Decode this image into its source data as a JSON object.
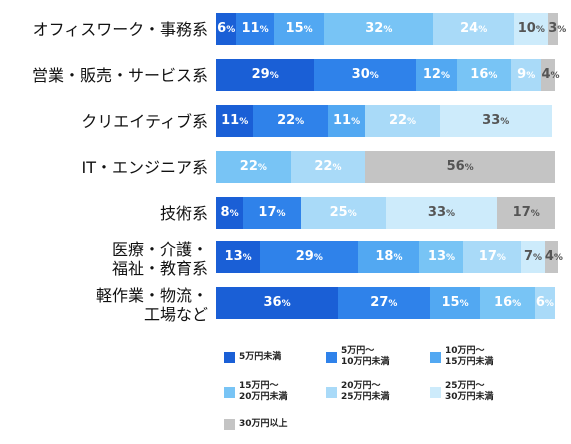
{
  "chart_data": {
    "type": "bar",
    "orientation": "horizontal",
    "stacked": true,
    "normalized": true,
    "unit": "%",
    "categories": [
      [
        "オフィスワーク・事務系"
      ],
      [
        "営業・販売・サービス系"
      ],
      [
        "クリエイティブ系"
      ],
      [
        "IT・エンジニア系"
      ],
      [
        "技術系"
      ],
      [
        "医療・介護・",
        "福祉・教育系"
      ],
      [
        "軽作業・物流・",
        "工場など"
      ]
    ],
    "series": [
      {
        "name": "5万円未満",
        "color": "#1a5fd6",
        "values": [
          6,
          29,
          11,
          0,
          8,
          13,
          36
        ]
      },
      {
        "name": "5万円〜\n10万円未満",
        "color": "#2f82ea",
        "values": [
          11,
          30,
          22,
          0,
          17,
          29,
          27
        ]
      },
      {
        "name": "10万円〜\n15万円未満",
        "color": "#52a8f2",
        "values": [
          15,
          12,
          11,
          0,
          0,
          18,
          15
        ]
      },
      {
        "name": "15万円〜\n20万円未満",
        "color": "#78c4f5",
        "values": [
          32,
          16,
          0,
          22,
          0,
          13,
          16
        ]
      },
      {
        "name": "20万円〜\n25万円未満",
        "color": "#a9daf8",
        "values": [
          24,
          9,
          22,
          22,
          25,
          17,
          6
        ]
      },
      {
        "name": "25万円〜\n30万円未満",
        "color": "#cdebfb",
        "values": [
          10,
          0,
          33,
          0,
          33,
          7,
          0
        ]
      },
      {
        "name": "30万円以上",
        "color": "#c4c4c4",
        "values": [
          3,
          4,
          0,
          56,
          17,
          4,
          0
        ]
      }
    ],
    "data_label_colors": [
      "#ffffff",
      "#ffffff",
      "#ffffff",
      "#ffffff",
      "#ffffff",
      "#555555",
      "#555555"
    ],
    "xlim": [
      0,
      100
    ],
    "legend_position": "bottom"
  }
}
